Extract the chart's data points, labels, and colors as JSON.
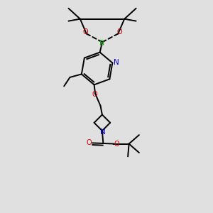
{
  "bg_color": "#e0e0e0",
  "bond_color": "#000000",
  "N_color": "#0000cc",
  "O_color": "#cc0000",
  "B_color": "#00aa00",
  "bond_width": 1.4,
  "figsize": [
    3.0,
    3.0
  ],
  "dpi": 100,
  "xlim": [
    0,
    10
  ],
  "ylim": [
    0,
    10
  ]
}
